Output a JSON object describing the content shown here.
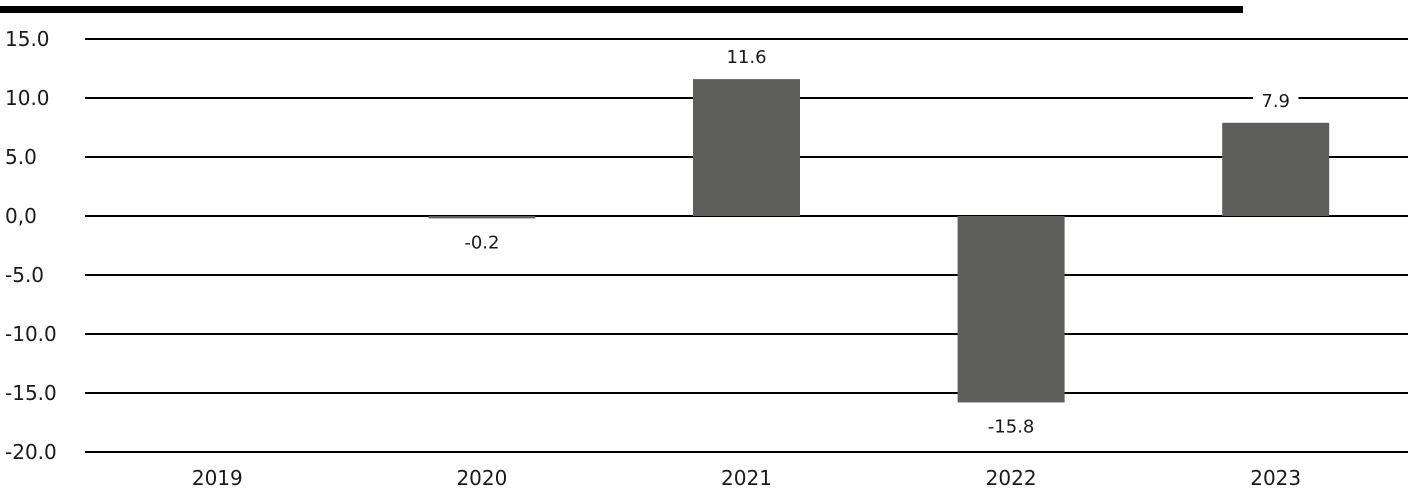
{
  "chart_data": {
    "type": "bar",
    "categories": [
      "2019",
      "2020",
      "2021",
      "2022",
      "2023"
    ],
    "values": [
      null,
      -0.2,
      11.6,
      -15.8,
      7.9
    ],
    "data_labels": [
      "",
      "-0.2",
      "11.6",
      "-15.8",
      "7.9"
    ],
    "y_tick_labels": [
      "15.0",
      "10.0",
      "5.0",
      "0,0",
      "-5.0",
      "-10.0",
      "-15.0",
      "-20.0"
    ],
    "y_ticks": [
      15,
      10,
      5,
      0,
      -5,
      -10,
      -15,
      -20
    ],
    "ylim": [
      -20,
      15
    ],
    "grid": true,
    "legend": "none",
    "colors": {
      "bar": "#5e5e5c",
      "top_rule": "#000000",
      "grid": "#000000"
    }
  }
}
